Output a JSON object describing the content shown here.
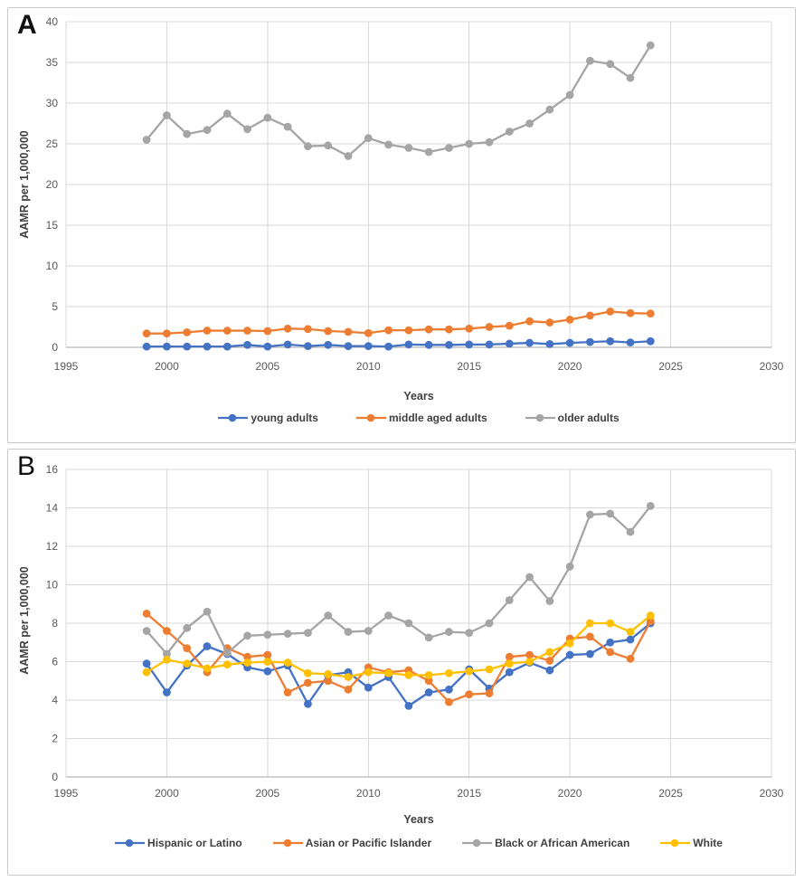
{
  "colors": {
    "grid": "#d9d9d9",
    "axis": "#a6a6a6",
    "tick_text": "#595959",
    "panel_border": "#c9c9c9",
    "blue": "#4472C4",
    "orange": "#ED7D31",
    "gray": "#A5A5A5",
    "yellow": "#FFC000"
  },
  "chart_data": [
    {
      "panel_label": "A",
      "type": "line",
      "title": "",
      "xlabel": "Years",
      "ylabel": "AAMR per 1,000,000",
      "xlim": [
        1995,
        2030
      ],
      "xtick": 5,
      "ylim": [
        0,
        40
      ],
      "ytick": 5,
      "grid": true,
      "legend_position": "bottom",
      "x": [
        1999,
        2000,
        2001,
        2002,
        2003,
        2004,
        2005,
        2006,
        2007,
        2008,
        2009,
        2010,
        2011,
        2012,
        2013,
        2014,
        2015,
        2016,
        2017,
        2018,
        2019,
        2020,
        2021,
        2022,
        2023,
        2024
      ],
      "series": [
        {
          "name": "young adults",
          "color": "#4472C4",
          "values": [
            0.1,
            0.1,
            0.1,
            0.1,
            0.1,
            0.3,
            0.1,
            0.35,
            0.15,
            0.3,
            0.15,
            0.15,
            0.1,
            0.35,
            0.3,
            0.3,
            0.35,
            0.35,
            0.45,
            0.55,
            0.4,
            0.55,
            0.65,
            0.75,
            0.6,
            0.75
          ]
        },
        {
          "name": "middle aged adults",
          "color": "#ED7D31",
          "values": [
            1.7,
            1.7,
            1.85,
            2.05,
            2.05,
            2.05,
            2.0,
            2.3,
            2.25,
            2.0,
            1.9,
            1.75,
            2.1,
            2.1,
            2.2,
            2.2,
            2.3,
            2.5,
            2.65,
            3.2,
            3.05,
            3.4,
            3.9,
            4.4,
            4.2,
            4.15
          ]
        },
        {
          "name": "older adults",
          "color": "#A5A5A5",
          "values": [
            25.5,
            28.5,
            26.2,
            26.7,
            28.7,
            26.8,
            28.2,
            27.1,
            24.7,
            24.8,
            23.5,
            25.7,
            24.9,
            24.5,
            24.0,
            24.5,
            25.0,
            25.2,
            26.5,
            27.5,
            29.2,
            31.0,
            35.2,
            34.8,
            33.1,
            37.1
          ]
        }
      ]
    },
    {
      "panel_label": "B",
      "type": "line",
      "title": "",
      "xlabel": "Years",
      "ylabel": "AAMR per 1,000,000",
      "xlim": [
        1995,
        2030
      ],
      "xtick": 5,
      "ylim": [
        0,
        16
      ],
      "ytick": 2,
      "grid": true,
      "legend_position": "bottom",
      "x": [
        1999,
        2000,
        2001,
        2002,
        2003,
        2004,
        2005,
        2006,
        2007,
        2008,
        2009,
        2010,
        2011,
        2012,
        2013,
        2014,
        2015,
        2016,
        2017,
        2018,
        2019,
        2020,
        2021,
        2022,
        2023,
        2024
      ],
      "series": [
        {
          "name": "Hispanic or Latino",
          "color": "#4472C4",
          "values": [
            5.9,
            4.4,
            5.8,
            6.8,
            6.4,
            5.7,
            5.5,
            5.8,
            3.8,
            5.3,
            5.45,
            4.65,
            5.2,
            3.7,
            4.4,
            4.55,
            5.6,
            4.6,
            5.45,
            5.95,
            5.55,
            6.35,
            6.4,
            7.0,
            7.15,
            8.0
          ]
        },
        {
          "name": "Asian or Pacific Islander",
          "color": "#ED7D31",
          "values": [
            8.5,
            7.6,
            6.7,
            5.45,
            6.7,
            6.25,
            6.35,
            4.4,
            4.9,
            5.0,
            4.55,
            5.7,
            5.45,
            5.55,
            5.0,
            3.9,
            4.3,
            4.35,
            6.25,
            6.35,
            6.05,
            7.2,
            7.3,
            6.5,
            6.15,
            8.1
          ]
        },
        {
          "name": "Black or African American",
          "color": "#A5A5A5",
          "values": [
            7.6,
            6.4,
            7.75,
            8.6,
            6.45,
            7.35,
            7.4,
            7.45,
            7.5,
            8.4,
            7.55,
            7.6,
            8.4,
            8.0,
            7.25,
            7.55,
            7.5,
            8.0,
            9.2,
            10.4,
            9.15,
            10.95,
            13.65,
            13.7,
            12.75,
            14.1
          ]
        },
        {
          "name": "White",
          "color": "#FFC000",
          "values": [
            5.45,
            6.1,
            5.9,
            5.65,
            5.85,
            5.95,
            6.0,
            5.95,
            5.4,
            5.35,
            5.2,
            5.45,
            5.4,
            5.3,
            5.3,
            5.4,
            5.5,
            5.6,
            5.9,
            6.0,
            6.5,
            6.95,
            8.0,
            8.0,
            7.55,
            8.4
          ]
        }
      ]
    }
  ]
}
